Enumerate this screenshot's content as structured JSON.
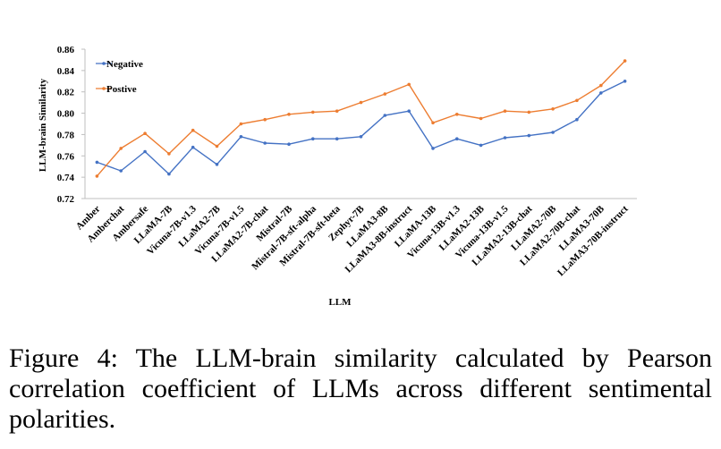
{
  "caption": "Figure 4: The LLM-brain similarity calculated by Pearson correlation coefficient of LLMs across different sentimental polarities.",
  "chart_data": {
    "type": "line",
    "title": "",
    "xlabel": "LLM",
    "ylabel": "LLM-brain Similarity",
    "ylim": [
      0.72,
      0.86
    ],
    "yticks": [
      "0.72",
      "0.74",
      "0.76",
      "0.78",
      "0.80",
      "0.82",
      "0.84",
      "0.86"
    ],
    "grid": false,
    "legend_position": "top-left",
    "categories": [
      "Amber",
      "Amberchat",
      "Ambersafe",
      "LLaMA-7B",
      "Vicuna-7B-v1.3",
      "LLaMA2-7B",
      "Vicuna-7B-v1.5",
      "LLaMA2-7B-chat",
      "Mistral-7B",
      "Mistral-7B-sft-alpha",
      "Mistral-7B-sft-beta",
      "Zephyr-7B",
      "LLaMA3-8B",
      "LLaMA3-8B-instruct",
      "LLaMA-13B",
      "Vicuna-13B-v1.3",
      "LLaMA2-13B",
      "Vicuna-13B-v1.5",
      "LLaMA2-13B-chat",
      "LLaMA2-70B",
      "LLaMA2-70B-chat",
      "LLaMA3-70B",
      "LLaMA3-70B-instruct"
    ],
    "series": [
      {
        "name": "Negative",
        "color": "#4472C4",
        "values": [
          0.754,
          0.746,
          0.764,
          0.743,
          0.768,
          0.752,
          0.778,
          0.772,
          0.771,
          0.776,
          0.776,
          0.778,
          0.798,
          0.802,
          0.767,
          0.776,
          0.77,
          0.777,
          0.779,
          0.782,
          0.794,
          0.819,
          0.83
        ]
      },
      {
        "name": "Postive",
        "color": "#ED7D31",
        "values": [
          0.741,
          0.767,
          0.781,
          0.762,
          0.784,
          0.769,
          0.79,
          0.794,
          0.799,
          0.801,
          0.802,
          0.81,
          0.818,
          0.827,
          0.791,
          0.799,
          0.795,
          0.802,
          0.801,
          0.804,
          0.812,
          0.826,
          0.849
        ]
      }
    ]
  }
}
